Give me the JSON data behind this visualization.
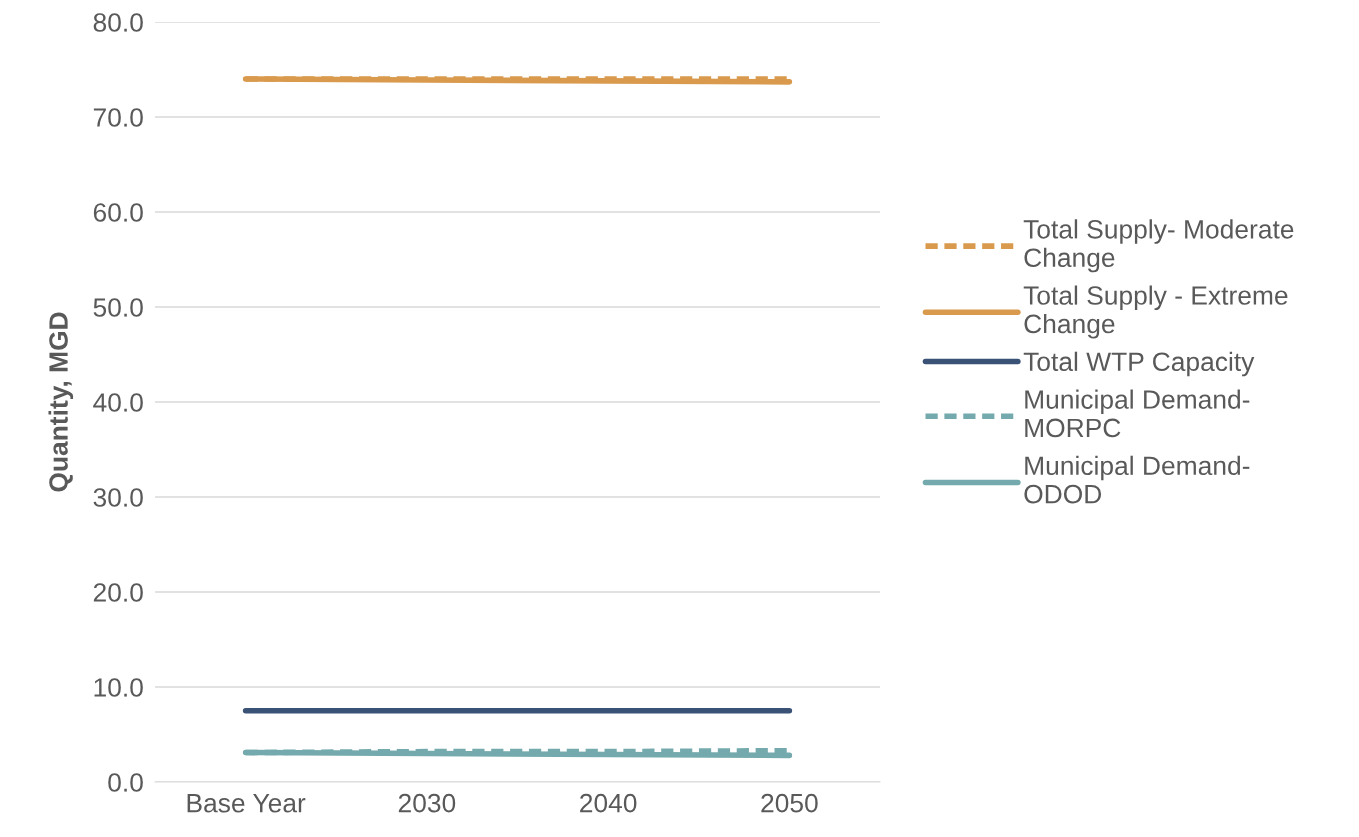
{
  "chart_data": {
    "type": "line",
    "ylabel": "Quantity, MGD",
    "categories": [
      "Base Year",
      "2030",
      "2040",
      "2050"
    ],
    "series": [
      {
        "name": "Total Supply- Moderate Change",
        "color": "#d99a4e",
        "line_style": "dashed",
        "values": [
          74.0,
          74.0,
          74.0,
          74.0
        ]
      },
      {
        "name": "Total Supply - Extreme Change",
        "color": "#d99a4e",
        "line_style": "solid",
        "values": [
          74.0,
          73.9,
          73.8,
          73.7
        ]
      },
      {
        "name": "Total WTP Capacity",
        "color": "#3a5276",
        "line_style": "solid",
        "values": [
          7.5,
          7.5,
          7.5,
          7.5
        ]
      },
      {
        "name": "Municipal Demand- MORPC",
        "color": "#74aaad",
        "line_style": "dashed",
        "values": [
          3.1,
          3.2,
          3.2,
          3.3
        ]
      },
      {
        "name": "Municipal Demand- ODOD",
        "color": "#74aaad",
        "line_style": "solid",
        "values": [
          3.1,
          3.0,
          2.9,
          2.8
        ]
      }
    ],
    "ylim": [
      0,
      80
    ],
    "yticks": [
      {
        "value": 0,
        "label": "0.0"
      },
      {
        "value": 10,
        "label": "10.0"
      },
      {
        "value": 20,
        "label": "20.0"
      },
      {
        "value": 30,
        "label": "30.0"
      },
      {
        "value": 40,
        "label": "40.0"
      },
      {
        "value": 50,
        "label": "50.0"
      },
      {
        "value": 60,
        "label": "60.0"
      },
      {
        "value": 70,
        "label": "70.0"
      },
      {
        "value": 80,
        "label": "80.0"
      }
    ],
    "grid": "y",
    "legend": "right",
    "marker": "none"
  }
}
